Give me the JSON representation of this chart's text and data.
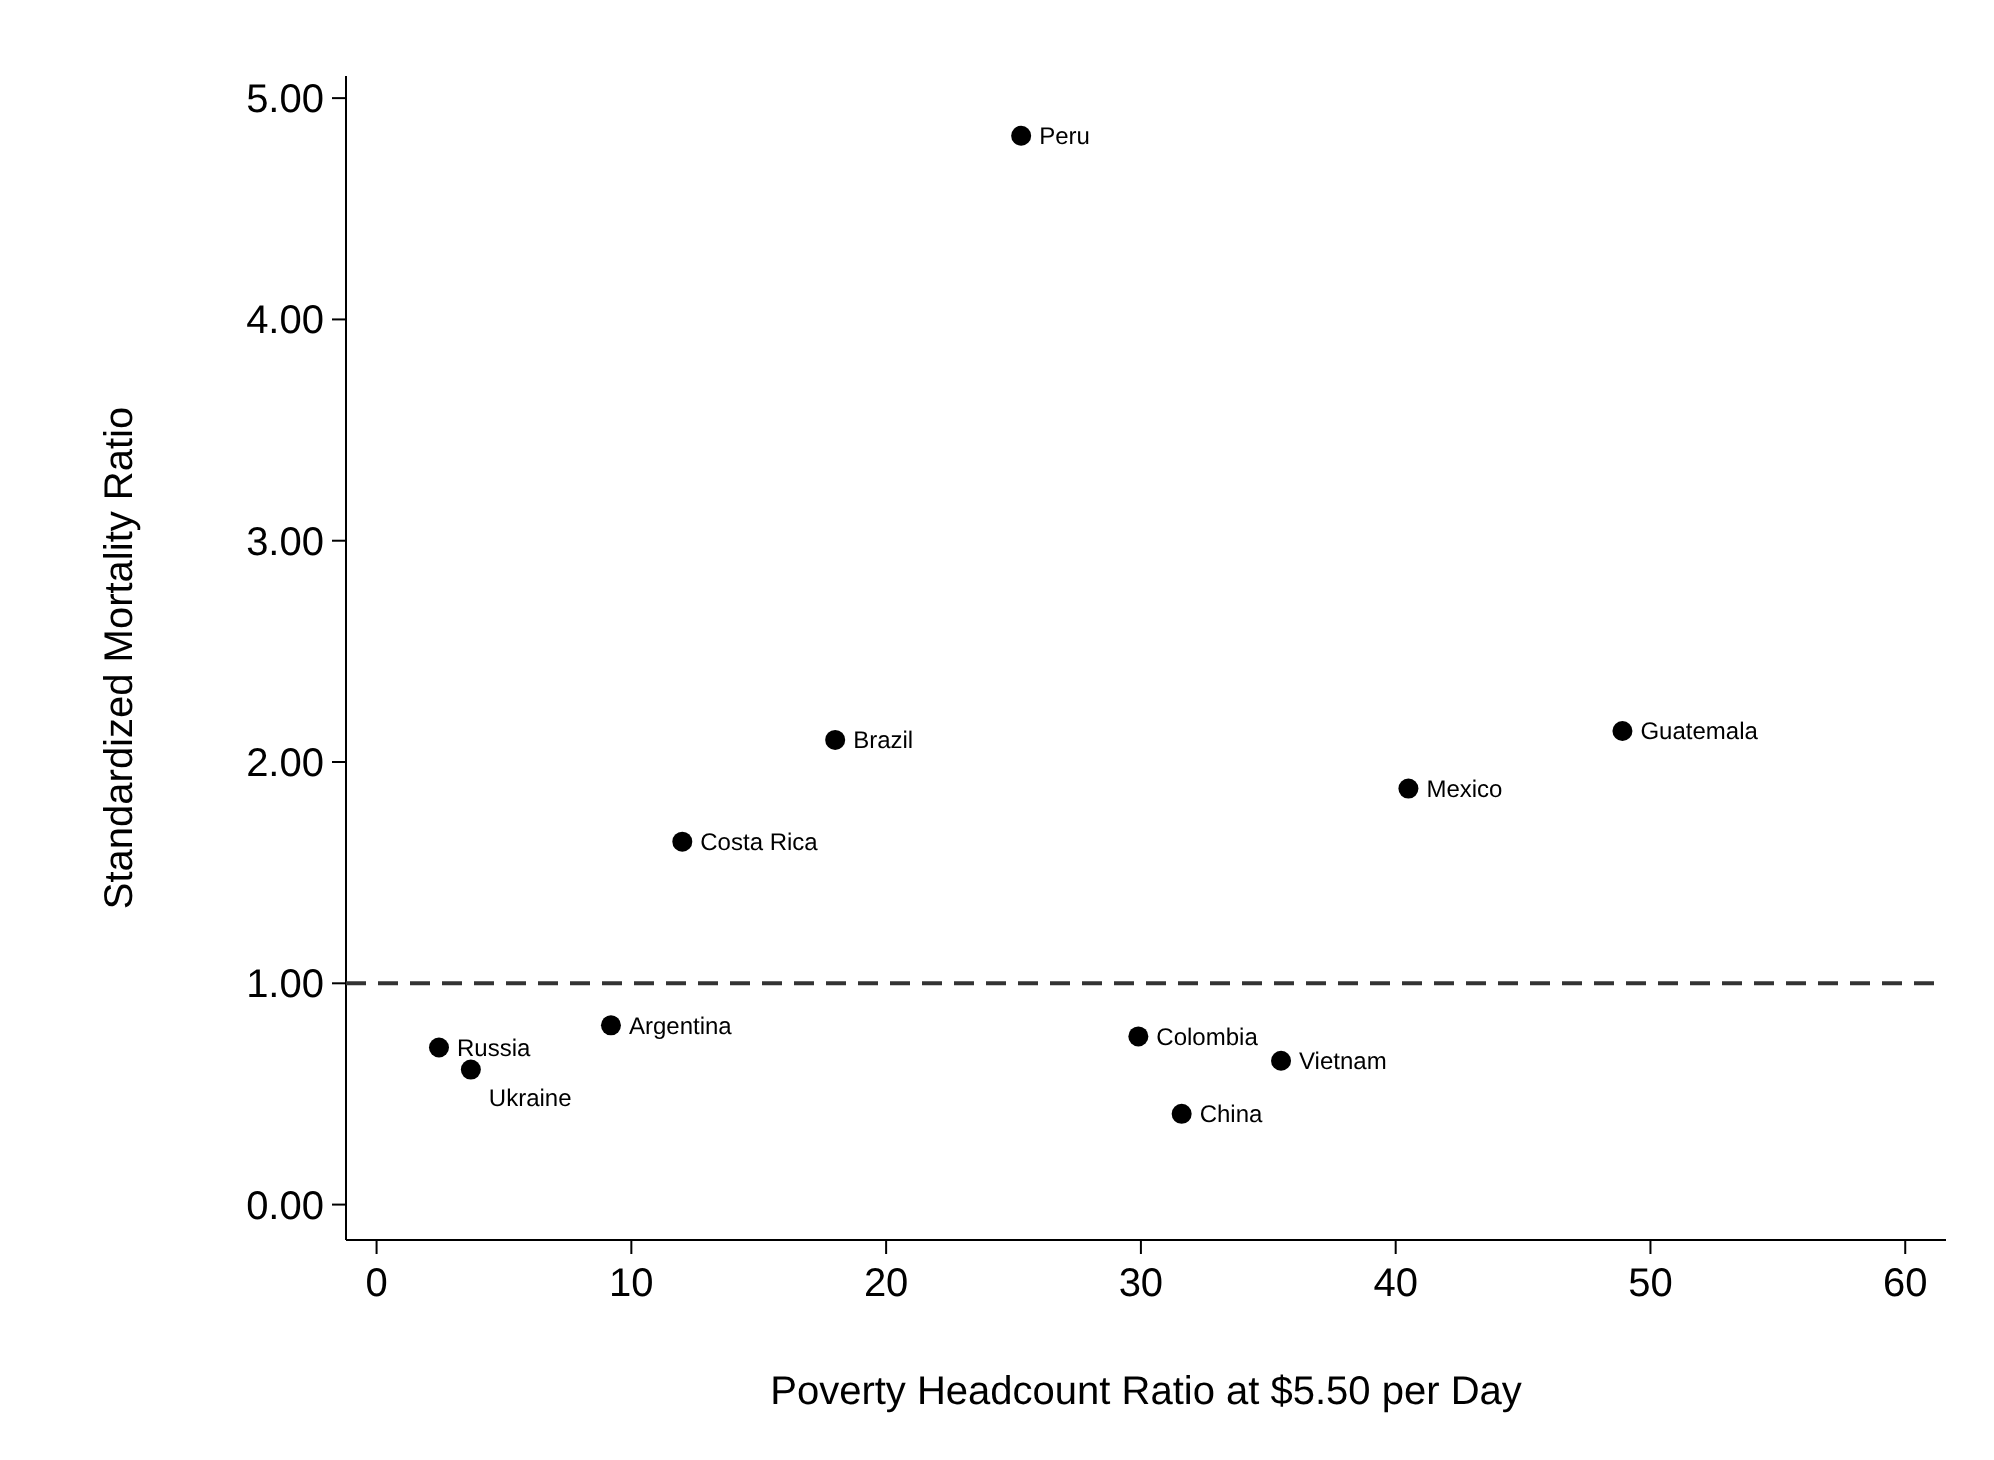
{
  "chart_data": {
    "type": "scatter",
    "xlabel": "Poverty Headcount Ratio at $5.50 per Day",
    "ylabel": "Standardized Mortality Ratio",
    "xlim": [
      -1.2,
      61.6
    ],
    "ylim": [
      -0.16,
      5.1
    ],
    "xticks": [
      0,
      10,
      20,
      30,
      40,
      50,
      60
    ],
    "yticks": [
      {
        "value": 0,
        "label": "0.00"
      },
      {
        "value": 1,
        "label": "1.00"
      },
      {
        "value": 2,
        "label": "2.00"
      },
      {
        "value": 3,
        "label": "3.00"
      },
      {
        "value": 4,
        "label": "4.00"
      },
      {
        "value": 5,
        "label": "5.00"
      }
    ],
    "grid": false,
    "marker": "circle",
    "series": [
      {
        "color": "#000000",
        "x": [
          25.3,
          18.0,
          12.0,
          48.9,
          40.5,
          2.45,
          3.7,
          9.2,
          29.9,
          35.5,
          31.6
        ],
        "values": [
          4.83,
          2.1,
          1.64,
          2.14,
          1.88,
          0.71,
          0.61,
          0.81,
          0.76,
          0.65,
          0.41
        ]
      }
    ],
    "ref_lines": [
      {
        "axis": "y",
        "value": 1,
        "color": "#333333",
        "line_style": "dashed"
      }
    ],
    "annotations": [
      {
        "text": "Peru",
        "x": 25.3,
        "y": 4.83
      },
      {
        "text": "Brazil",
        "x": 18.0,
        "y": 2.1
      },
      {
        "text": "Costa Rica",
        "x": 12.0,
        "y": 1.64
      },
      {
        "text": "Guatemala",
        "x": 48.9,
        "y": 2.14
      },
      {
        "text": "Mexico",
        "x": 40.5,
        "y": 1.88
      },
      {
        "text": "Russia",
        "x": 2.45,
        "y": 0.71
      },
      {
        "text": "Ukraine",
        "x": 3.7,
        "y": 0.61
      },
      {
        "text": "Argentina",
        "x": 9.2,
        "y": 0.81
      },
      {
        "text": "Colombia",
        "x": 29.9,
        "y": 0.76
      },
      {
        "text": "Vietnam",
        "x": 35.5,
        "y": 0.65
      },
      {
        "text": "China",
        "x": 31.6,
        "y": 0.41
      }
    ]
  }
}
